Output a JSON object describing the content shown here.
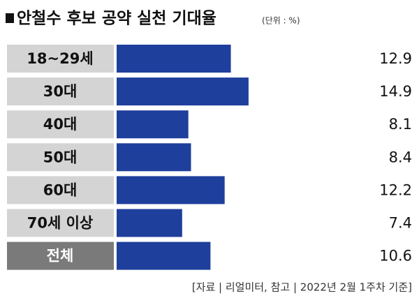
{
  "chart_data": {
    "type": "bar",
    "orientation": "horizontal",
    "title": "안철수 후보 공약 실천 기대율",
    "unit": "(단위 : %)",
    "categories": [
      "18~29세",
      "30대",
      "40대",
      "50대",
      "60대",
      "70세 이상",
      "전체"
    ],
    "values": [
      12.9,
      14.9,
      8.1,
      8.4,
      12.2,
      7.4,
      10.6
    ],
    "color": "#1f3f9c",
    "label_colors": [
      "#d4d4d4",
      "#d4d4d4",
      "#d4d4d4",
      "#d4d4d4",
      "#d4d4d4",
      "#d4d4d4",
      "#7a7a7a"
    ],
    "label_text_colors": [
      "#111111",
      "#111111",
      "#111111",
      "#111111",
      "#111111",
      "#111111",
      "#ffffff"
    ],
    "source": "[자료 | 리얼미터, 참고 | 2022년 2월 1주차 기준]"
  }
}
